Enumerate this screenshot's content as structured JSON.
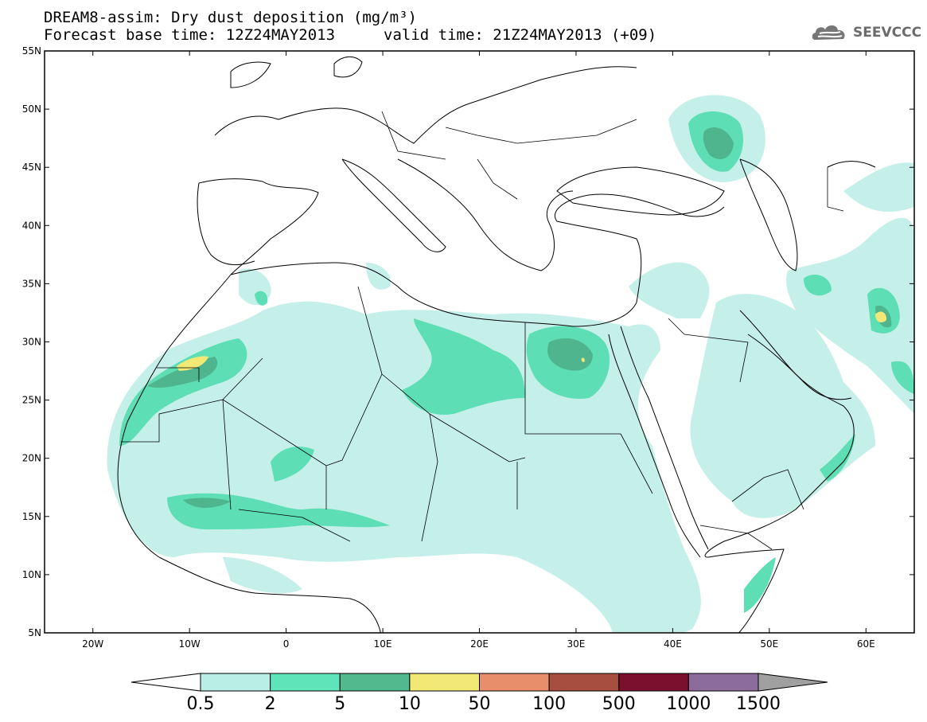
{
  "title": {
    "line1": "DREAM8-assim: Dry dust deposition (mg/m³)",
    "line2": "Forecast base time: 12Z24MAY2013",
    "line2b": "valid time: 21Z24MAY2013 (+09)"
  },
  "logo": {
    "text": "SEEVCCC",
    "icon": "cloud-icon"
  },
  "map": {
    "lon_range": [
      -25,
      65
    ],
    "lat_range": [
      5,
      55
    ],
    "lat_ticks": [
      "5N",
      "10N",
      "15N",
      "20N",
      "25N",
      "30N",
      "35N",
      "40N",
      "45N",
      "50N",
      "55N"
    ],
    "lon_ticks": [
      "20W",
      "10W",
      "0",
      "10E",
      "20E",
      "30E",
      "40E",
      "50E",
      "60E"
    ]
  },
  "colorbar": {
    "labels": [
      "0.5",
      "2",
      "5",
      "10",
      "50",
      "100",
      "500",
      "1000",
      "1500"
    ],
    "colors": [
      "#b8eee4",
      "#5fe3b8",
      "#52b88e",
      "#f2e876",
      "#e98e6a",
      "#a84e40",
      "#7a0f2e",
      "#8c6c9c"
    ],
    "under_color": "#ffffff",
    "over_color": "#a0a0a0"
  },
  "contour_colors": {
    "light": "#c5f0e9",
    "medium": "#5ddeb4",
    "dark": "#4fb58f",
    "yellow": "#f2e876"
  }
}
